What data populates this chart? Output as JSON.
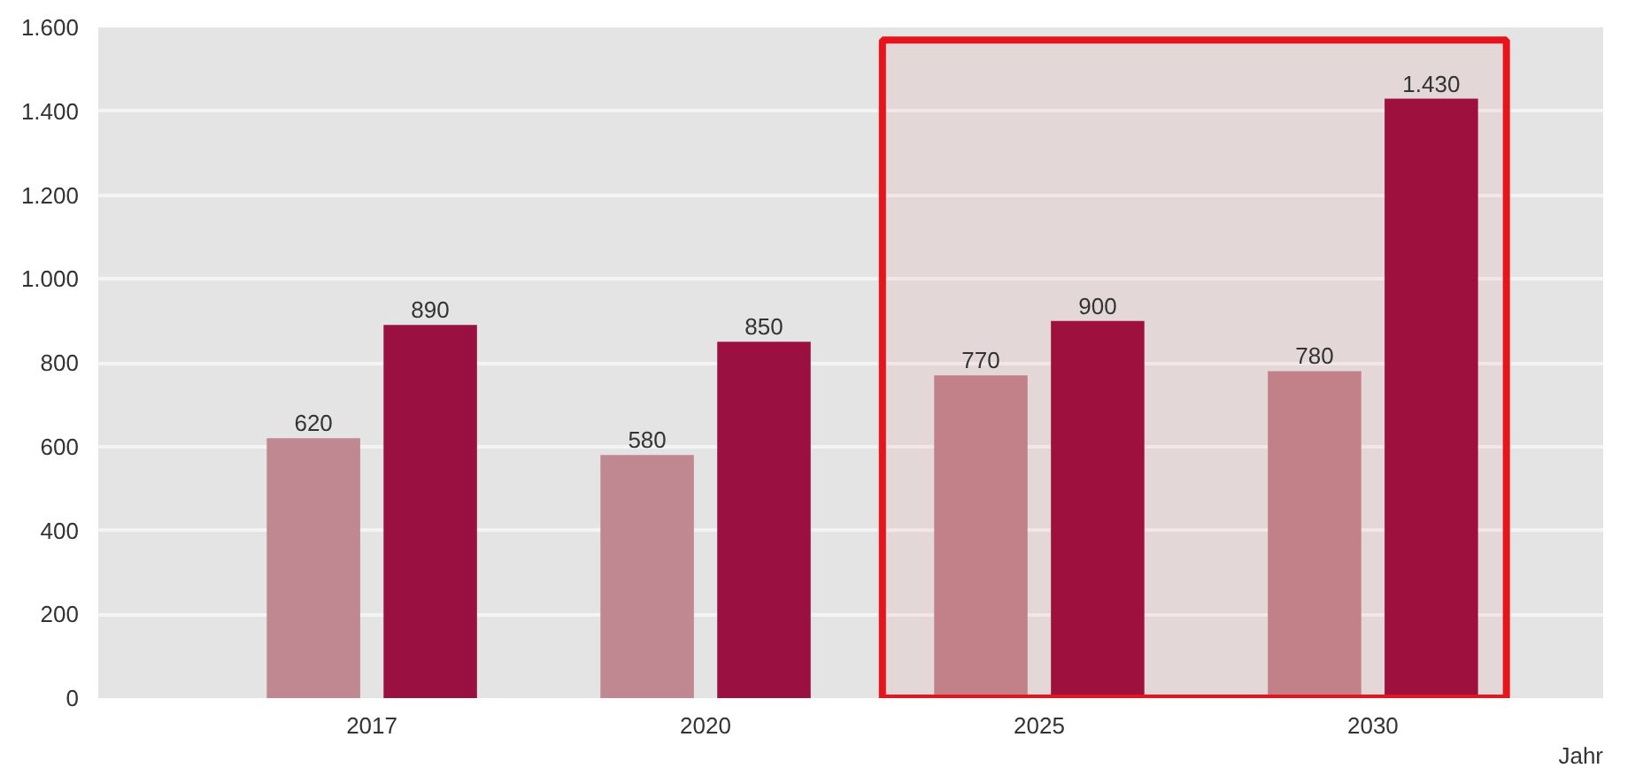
{
  "chart_data": {
    "type": "bar",
    "xlabel": "Jahr",
    "categories": [
      "2017",
      "2020",
      "2025",
      "2030"
    ],
    "series": [
      {
        "color": "#c08890",
        "values": [
          620,
          580,
          770,
          780
        ],
        "value_labels": [
          "620",
          "580",
          "770",
          "780"
        ]
      },
      {
        "color": "#9a1040",
        "values": [
          890,
          850,
          900,
          1430
        ],
        "value_labels": [
          "890",
          "850",
          "900",
          "1.430"
        ]
      }
    ],
    "ylim": [
      0,
      1600
    ],
    "yticks": [
      0,
      200,
      400,
      600,
      800,
      {
        "value": 1000,
        "label": "1.000"
      },
      {
        "value": 1200,
        "label": "1.200"
      },
      {
        "value": 1400,
        "label": "1.400"
      },
      {
        "value": 1600,
        "label": "1.600"
      }
    ],
    "grid": "y",
    "bands": [
      {
        "axis": "x",
        "from": "2025",
        "to": "2030",
        "color": "#e8141c"
      }
    ]
  }
}
